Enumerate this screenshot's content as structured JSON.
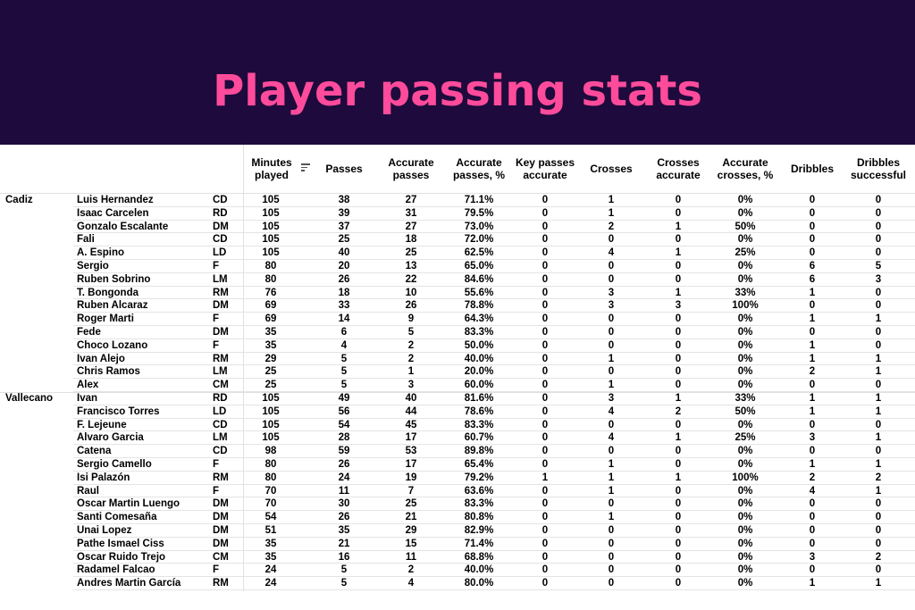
{
  "title": "Player passing stats",
  "colors": {
    "banner": "#1e0a3c",
    "title": "#ff4b9b"
  },
  "sort_icon": "sort-descending-icon",
  "columns": [
    "Minutes played",
    "Passes",
    "Accurate passes",
    "Accurate passes, %",
    "Key passes accurate",
    "Crosses",
    "Crosses accurate",
    "Accurate crosses, %",
    "Dribbles",
    "Dribbles successful"
  ],
  "teams": [
    {
      "name": "Cadiz",
      "players": [
        {
          "name": "Luis Hernandez",
          "pos": "CD",
          "v": [
            "105",
            "38",
            "27",
            "71.1%",
            "0",
            "1",
            "0",
            "0%",
            "0",
            "0"
          ]
        },
        {
          "name": "Isaac Carcelen",
          "pos": "RD",
          "v": [
            "105",
            "39",
            "31",
            "79.5%",
            "0",
            "1",
            "0",
            "0%",
            "0",
            "0"
          ]
        },
        {
          "name": "Gonzalo Escalante",
          "pos": "DM",
          "v": [
            "105",
            "37",
            "27",
            "73.0%",
            "0",
            "2",
            "1",
            "50%",
            "0",
            "0"
          ]
        },
        {
          "name": "Fali",
          "pos": "CD",
          "v": [
            "105",
            "25",
            "18",
            "72.0%",
            "0",
            "0",
            "0",
            "0%",
            "0",
            "0"
          ]
        },
        {
          "name": "A. Espino",
          "pos": "LD",
          "v": [
            "105",
            "40",
            "25",
            "62.5%",
            "0",
            "4",
            "1",
            "25%",
            "0",
            "0"
          ]
        },
        {
          "name": "Sergio",
          "pos": "F",
          "v": [
            "80",
            "20",
            "13",
            "65.0%",
            "0",
            "0",
            "0",
            "0%",
            "6",
            "5"
          ]
        },
        {
          "name": "Ruben Sobrino",
          "pos": "LM",
          "v": [
            "80",
            "26",
            "22",
            "84.6%",
            "0",
            "0",
            "0",
            "0%",
            "6",
            "3"
          ]
        },
        {
          "name": "T. Bongonda",
          "pos": "RM",
          "v": [
            "76",
            "18",
            "10",
            "55.6%",
            "0",
            "3",
            "1",
            "33%",
            "1",
            "0"
          ]
        },
        {
          "name": "Ruben Alcaraz",
          "pos": "DM",
          "v": [
            "69",
            "33",
            "26",
            "78.8%",
            "0",
            "3",
            "3",
            "100%",
            "0",
            "0"
          ]
        },
        {
          "name": "Roger Marti",
          "pos": "F",
          "v": [
            "69",
            "14",
            "9",
            "64.3%",
            "0",
            "0",
            "0",
            "0%",
            "1",
            "1"
          ]
        },
        {
          "name": "Fede",
          "pos": "DM",
          "v": [
            "35",
            "6",
            "5",
            "83.3%",
            "0",
            "0",
            "0",
            "0%",
            "0",
            "0"
          ]
        },
        {
          "name": "Choco Lozano",
          "pos": "F",
          "v": [
            "35",
            "4",
            "2",
            "50.0%",
            "0",
            "0",
            "0",
            "0%",
            "1",
            "0"
          ]
        },
        {
          "name": "Ivan Alejo",
          "pos": "RM",
          "v": [
            "29",
            "5",
            "2",
            "40.0%",
            "0",
            "1",
            "0",
            "0%",
            "1",
            "1"
          ]
        },
        {
          "name": "Chris Ramos",
          "pos": "LM",
          "v": [
            "25",
            "5",
            "1",
            "20.0%",
            "0",
            "0",
            "0",
            "0%",
            "2",
            "1"
          ]
        },
        {
          "name": "Alex",
          "pos": "CM",
          "v": [
            "25",
            "5",
            "3",
            "60.0%",
            "0",
            "1",
            "0",
            "0%",
            "0",
            "0"
          ]
        }
      ]
    },
    {
      "name": "Vallecano",
      "players": [
        {
          "name": "Ivan",
          "pos": "RD",
          "v": [
            "105",
            "49",
            "40",
            "81.6%",
            "0",
            "3",
            "1",
            "33%",
            "1",
            "1"
          ]
        },
        {
          "name": "Francisco Torres",
          "pos": "LD",
          "v": [
            "105",
            "56",
            "44",
            "78.6%",
            "0",
            "4",
            "2",
            "50%",
            "1",
            "1"
          ]
        },
        {
          "name": "F. Lejeune",
          "pos": "CD",
          "v": [
            "105",
            "54",
            "45",
            "83.3%",
            "0",
            "0",
            "0",
            "0%",
            "0",
            "0"
          ]
        },
        {
          "name": "Alvaro Garcia",
          "pos": "LM",
          "v": [
            "105",
            "28",
            "17",
            "60.7%",
            "0",
            "4",
            "1",
            "25%",
            "3",
            "1"
          ]
        },
        {
          "name": "Catena",
          "pos": "CD",
          "v": [
            "98",
            "59",
            "53",
            "89.8%",
            "0",
            "0",
            "0",
            "0%",
            "0",
            "0"
          ]
        },
        {
          "name": "Sergio Camello",
          "pos": "F",
          "v": [
            "80",
            "26",
            "17",
            "65.4%",
            "0",
            "1",
            "0",
            "0%",
            "1",
            "1"
          ]
        },
        {
          "name": "Isi Palazón",
          "pos": "RM",
          "v": [
            "80",
            "24",
            "19",
            "79.2%",
            "1",
            "1",
            "1",
            "100%",
            "2",
            "2"
          ]
        },
        {
          "name": "Raul",
          "pos": "F",
          "v": [
            "70",
            "11",
            "7",
            "63.6%",
            "0",
            "1",
            "0",
            "0%",
            "4",
            "1"
          ]
        },
        {
          "name": "Oscar Martin Luengo",
          "pos": "DM",
          "v": [
            "70",
            "30",
            "25",
            "83.3%",
            "0",
            "0",
            "0",
            "0%",
            "0",
            "0"
          ]
        },
        {
          "name": "Santi Comesaña",
          "pos": "DM",
          "v": [
            "54",
            "26",
            "21",
            "80.8%",
            "0",
            "1",
            "0",
            "0%",
            "0",
            "0"
          ]
        },
        {
          "name": "Unai Lopez",
          "pos": "DM",
          "v": [
            "51",
            "35",
            "29",
            "82.9%",
            "0",
            "0",
            "0",
            "0%",
            "0",
            "0"
          ]
        },
        {
          "name": "Pathe Ismael Ciss",
          "pos": "DM",
          "v": [
            "35",
            "21",
            "15",
            "71.4%",
            "0",
            "0",
            "0",
            "0%",
            "0",
            "0"
          ]
        },
        {
          "name": "Oscar Ruido Trejo",
          "pos": "CM",
          "v": [
            "35",
            "16",
            "11",
            "68.8%",
            "0",
            "0",
            "0",
            "0%",
            "3",
            "2"
          ]
        },
        {
          "name": "Radamel Falcao",
          "pos": "F",
          "v": [
            "24",
            "5",
            "2",
            "40.0%",
            "0",
            "0",
            "0",
            "0%",
            "0",
            "0"
          ]
        },
        {
          "name": "Andres Martin García",
          "pos": "RM",
          "v": [
            "24",
            "5",
            "4",
            "80.0%",
            "0",
            "0",
            "0",
            "0%",
            "1",
            "1"
          ]
        }
      ]
    }
  ]
}
